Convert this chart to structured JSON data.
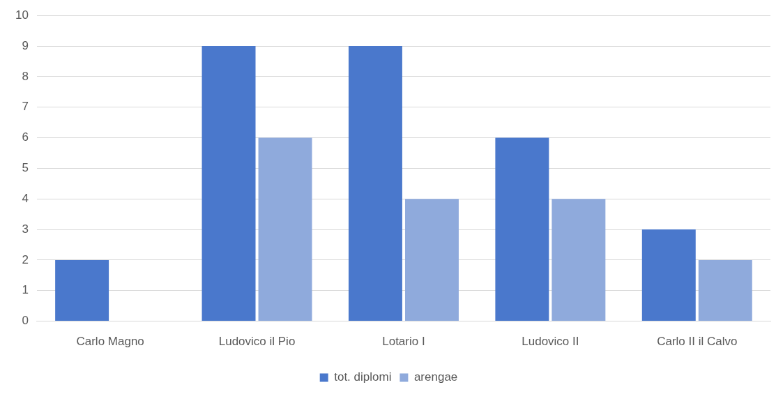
{
  "chart_data": {
    "type": "bar",
    "categories": [
      "Carlo Magno",
      "Ludovico il Pio",
      "Lotario I",
      "Ludovico II",
      "Carlo II il Calvo"
    ],
    "series": [
      {
        "name": "tot. diplomi",
        "color": "#4a78cc",
        "values": [
          2,
          9,
          9,
          6,
          3
        ]
      },
      {
        "name": "arengae",
        "color": "#8faadc",
        "values": [
          0,
          6,
          4,
          4,
          2
        ]
      }
    ],
    "ylim": [
      0,
      10
    ],
    "yticks": [
      0,
      1,
      2,
      3,
      4,
      5,
      6,
      7,
      8,
      9,
      10
    ],
    "grid": "y",
    "legend": "bottom"
  }
}
